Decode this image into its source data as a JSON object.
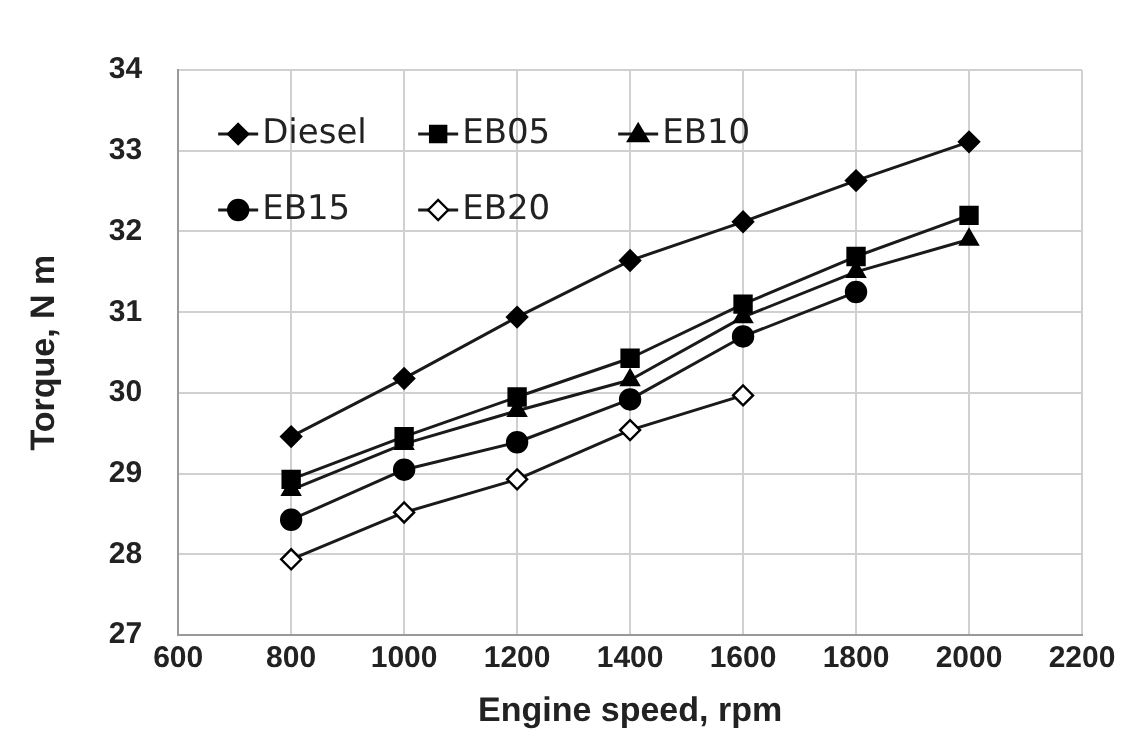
{
  "chart_data": {
    "type": "line",
    "xlabel": "Engine speed, rpm",
    "ylabel": "Torque, N m",
    "xlim": [
      600,
      2200
    ],
    "xticks": [
      600,
      800,
      1000,
      1200,
      1400,
      1600,
      1800,
      2000,
      2200
    ],
    "ylim": [
      27,
      34
    ],
    "yticks": [
      27,
      28,
      29,
      30,
      31,
      32,
      33,
      34
    ],
    "grid": true,
    "legend": "top left",
    "line_style": "solid",
    "series": [
      {
        "name": "Diesel",
        "color": "#000000",
        "marker": "diamond",
        "x": [
          800,
          1000,
          1200,
          1400,
          1600,
          1800,
          2000
        ],
        "values": [
          29.46,
          30.18,
          30.94,
          31.64,
          32.12,
          32.63,
          33.11
        ]
      },
      {
        "name": "EB05",
        "color": "#000000",
        "marker": "square",
        "x": [
          800,
          1000,
          1200,
          1400,
          1600,
          1800,
          2000
        ],
        "values": [
          28.93,
          29.46,
          29.95,
          30.43,
          31.1,
          31.69,
          32.2
        ]
      },
      {
        "name": "EB10",
        "color": "#000000",
        "marker": "triangle",
        "x": [
          800,
          1000,
          1200,
          1400,
          1600,
          1800,
          2000
        ],
        "values": [
          28.8,
          29.37,
          29.78,
          30.16,
          30.94,
          31.5,
          31.9
        ]
      },
      {
        "name": "EB15",
        "color": "#000000",
        "marker": "circle",
        "x": [
          800,
          1000,
          1200,
          1400,
          1600,
          1800
        ],
        "values": [
          28.43,
          29.05,
          29.39,
          29.92,
          30.7,
          31.25
        ]
      },
      {
        "name": "EB20",
        "color": "#ffffff",
        "marker": "diamond",
        "x": [
          800,
          1000,
          1200,
          1400,
          1600
        ],
        "values": [
          27.94,
          28.52,
          28.93,
          29.54,
          29.97
        ]
      }
    ]
  }
}
